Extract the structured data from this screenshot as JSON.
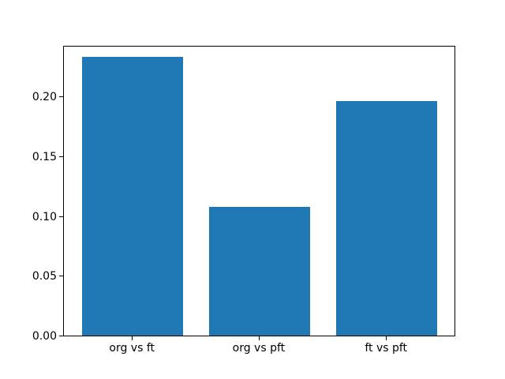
{
  "figure": {
    "background_color": "#ffffff",
    "axis_color": "#000000",
    "text_color": "#000000"
  },
  "chart_data": {
    "type": "bar",
    "categories": [
      "org vs ft",
      "org vs pft",
      "ft vs pft"
    ],
    "values": [
      0.233,
      0.108,
      0.196
    ],
    "title": "",
    "xlabel": "",
    "ylabel": "",
    "ylim": [
      0,
      0.2432
    ],
    "ytick_labels": [
      "0.00",
      "0.05",
      "0.10",
      "0.15",
      "0.20"
    ],
    "ytick_values": [
      0,
      0.05,
      0.1,
      0.15,
      0.2
    ],
    "bar_color": "#1f77b4",
    "bar_width_ratio": 0.8,
    "grid": false,
    "legend": null
  }
}
